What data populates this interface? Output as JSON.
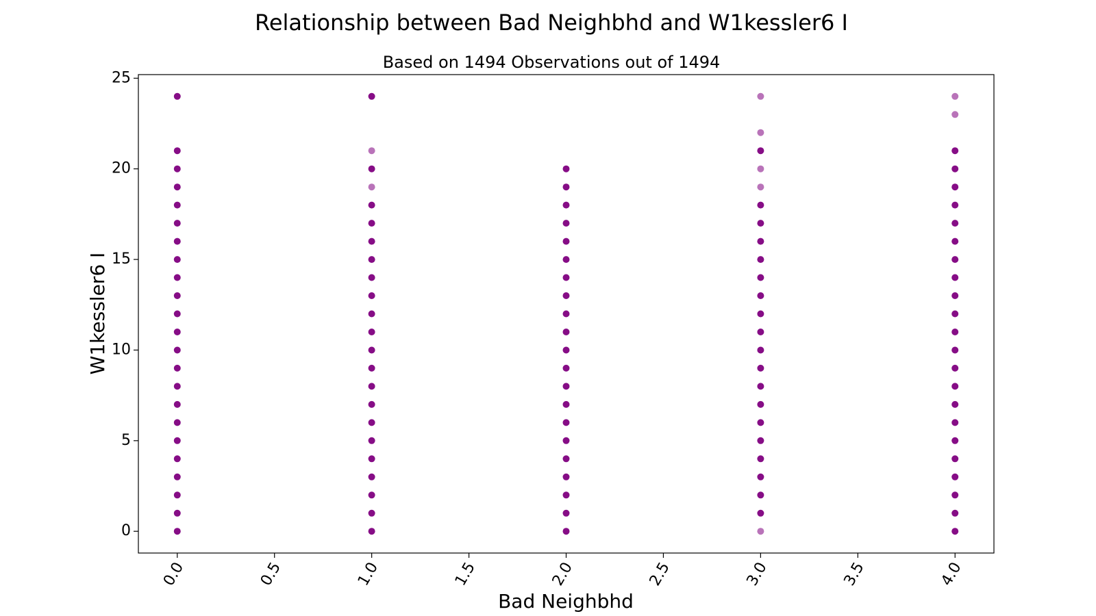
{
  "chart_data": {
    "type": "scatter",
    "title": "Relationship between Bad Neighbhd and W1kessler6 I",
    "subtitle": "Based on 1494 Observations out of 1494",
    "xlabel": "Bad Neighbhd",
    "ylabel": "W1kessler6 I",
    "xlim": [
      -0.2,
      4.2
    ],
    "ylim": [
      -1.2,
      25.2
    ],
    "xticks": [
      0.0,
      0.5,
      1.0,
      1.5,
      2.0,
      2.5,
      3.0,
      3.5,
      4.0
    ],
    "xtick_labels": [
      "0.0",
      "0.5",
      "1.0",
      "1.5",
      "2.0",
      "2.5",
      "3.0",
      "3.5",
      "4.0"
    ],
    "yticks": [
      0,
      5,
      10,
      15,
      20,
      25
    ],
    "ytick_labels": [
      "0",
      "5",
      "10",
      "15",
      "20",
      "25"
    ],
    "grid": false,
    "marker_color": "#800080",
    "points": [
      {
        "x": 0,
        "y": [
          0,
          1,
          2,
          3,
          4,
          5,
          6,
          7,
          8,
          9,
          10,
          11,
          12,
          13,
          14,
          15,
          16,
          17,
          18,
          19,
          20,
          21,
          24
        ],
        "sparse": []
      },
      {
        "x": 1,
        "y": [
          0,
          1,
          2,
          3,
          4,
          5,
          6,
          7,
          8,
          9,
          10,
          11,
          12,
          13,
          14,
          15,
          16,
          17,
          18,
          19,
          20,
          21,
          24
        ],
        "sparse": [
          19,
          21
        ]
      },
      {
        "x": 2,
        "y": [
          0,
          1,
          2,
          3,
          4,
          5,
          6,
          7,
          8,
          9,
          10,
          11,
          12,
          13,
          14,
          15,
          16,
          17,
          18,
          19,
          20
        ],
        "sparse": []
      },
      {
        "x": 3,
        "y": [
          0,
          1,
          2,
          3,
          4,
          5,
          6,
          7,
          8,
          9,
          10,
          11,
          12,
          13,
          14,
          15,
          16,
          17,
          18,
          19,
          20,
          21,
          22,
          24
        ],
        "sparse": [
          0,
          19,
          20,
          22,
          24
        ]
      },
      {
        "x": 4,
        "y": [
          0,
          1,
          2,
          3,
          4,
          5,
          6,
          7,
          8,
          9,
          10,
          11,
          12,
          13,
          14,
          15,
          16,
          17,
          18,
          19,
          20,
          21,
          23,
          24
        ],
        "sparse": [
          23,
          24
        ]
      }
    ]
  }
}
